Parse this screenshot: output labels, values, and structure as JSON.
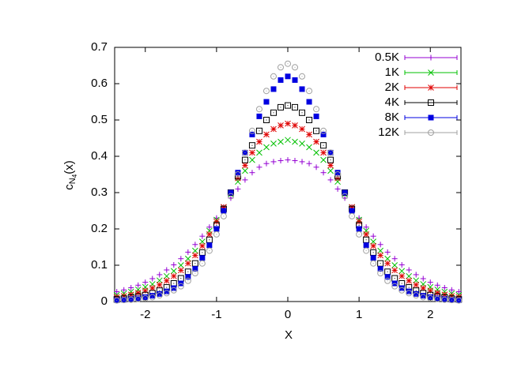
{
  "chart_data": {
    "type": "scatter",
    "xlabel": "X",
    "ylabel_parts": [
      "c",
      "N",
      "4",
      "(x)"
    ],
    "x": [
      -2.4,
      -2.3,
      -2.2,
      -2.1,
      -2.0,
      -1.9,
      -1.8,
      -1.7,
      -1.6,
      -1.5,
      -1.4,
      -1.3,
      -1.2,
      -1.1,
      -1.0,
      -0.9,
      -0.8,
      -0.7,
      -0.6,
      -0.5,
      -0.4,
      -0.3,
      -0.2,
      -0.1,
      0,
      0.1,
      0.2,
      0.3,
      0.4,
      0.5,
      0.6,
      0.7,
      0.8,
      0.9,
      1.0,
      1.1,
      1.2,
      1.3,
      1.4,
      1.5,
      1.6,
      1.7,
      1.8,
      1.9,
      2.0,
      2.1,
      2.2,
      2.3,
      2.4
    ],
    "xlim": [
      -2.43,
      2.43
    ],
    "xticks": [
      -2,
      -1,
      0,
      1,
      2
    ],
    "ylim": [
      0,
      0.7
    ],
    "yticks": [
      0,
      0.1,
      0.2,
      0.3,
      0.4,
      0.5,
      0.6,
      0.7
    ],
    "legend": "top-right",
    "series": [
      {
        "name": "0.5K",
        "color": "#9400d3",
        "marker": "plus",
        "values": [
          0.027,
          0.032,
          0.038,
          0.045,
          0.053,
          0.063,
          0.074,
          0.087,
          0.101,
          0.118,
          0.136,
          0.157,
          0.18,
          0.205,
          0.23,
          0.26,
          0.285,
          0.31,
          0.335,
          0.355,
          0.37,
          0.38,
          0.385,
          0.388,
          0.39,
          0.388,
          0.385,
          0.38,
          0.37,
          0.355,
          0.335,
          0.31,
          0.285,
          0.26,
          0.23,
          0.205,
          0.18,
          0.157,
          0.136,
          0.118,
          0.101,
          0.087,
          0.074,
          0.063,
          0.053,
          0.045,
          0.038,
          0.032,
          0.027
        ]
      },
      {
        "name": "1K",
        "color": "#00c000",
        "marker": "cross",
        "values": [
          0.018,
          0.022,
          0.027,
          0.033,
          0.04,
          0.048,
          0.058,
          0.07,
          0.084,
          0.1,
          0.118,
          0.14,
          0.165,
          0.195,
          0.225,
          0.26,
          0.295,
          0.33,
          0.36,
          0.39,
          0.41,
          0.425,
          0.435,
          0.44,
          0.445,
          0.44,
          0.435,
          0.425,
          0.41,
          0.39,
          0.36,
          0.33,
          0.295,
          0.26,
          0.225,
          0.195,
          0.165,
          0.14,
          0.118,
          0.1,
          0.084,
          0.07,
          0.058,
          0.048,
          0.04,
          0.033,
          0.027,
          0.022,
          0.018
        ]
      },
      {
        "name": "2K",
        "color": "#e00000",
        "marker": "star",
        "values": [
          0.012,
          0.015,
          0.019,
          0.024,
          0.03,
          0.037,
          0.046,
          0.057,
          0.07,
          0.086,
          0.105,
          0.127,
          0.153,
          0.185,
          0.22,
          0.26,
          0.3,
          0.34,
          0.375,
          0.41,
          0.44,
          0.46,
          0.475,
          0.485,
          0.49,
          0.485,
          0.475,
          0.46,
          0.44,
          0.41,
          0.375,
          0.34,
          0.3,
          0.26,
          0.22,
          0.185,
          0.153,
          0.127,
          0.105,
          0.086,
          0.07,
          0.057,
          0.046,
          0.037,
          0.03,
          0.024,
          0.019,
          0.015,
          0.012
        ]
      },
      {
        "name": "4K",
        "color": "#000000",
        "marker": "box",
        "values": [
          0.006,
          0.008,
          0.011,
          0.014,
          0.018,
          0.023,
          0.03,
          0.039,
          0.05,
          0.064,
          0.082,
          0.105,
          0.135,
          0.17,
          0.21,
          0.255,
          0.3,
          0.345,
          0.39,
          0.43,
          0.47,
          0.5,
          0.52,
          0.535,
          0.54,
          0.535,
          0.52,
          0.5,
          0.47,
          0.43,
          0.39,
          0.345,
          0.3,
          0.255,
          0.21,
          0.17,
          0.135,
          0.105,
          0.082,
          0.064,
          0.05,
          0.039,
          0.03,
          0.023,
          0.018,
          0.014,
          0.011,
          0.008,
          0.006
        ]
      },
      {
        "name": "8K",
        "color": "#0000e0",
        "marker": "filled-box",
        "values": [
          0.004,
          0.005,
          0.007,
          0.009,
          0.012,
          0.016,
          0.021,
          0.028,
          0.037,
          0.05,
          0.068,
          0.09,
          0.12,
          0.155,
          0.2,
          0.25,
          0.3,
          0.355,
          0.41,
          0.46,
          0.51,
          0.55,
          0.585,
          0.61,
          0.62,
          0.61,
          0.585,
          0.55,
          0.51,
          0.46,
          0.41,
          0.355,
          0.3,
          0.25,
          0.2,
          0.155,
          0.12,
          0.09,
          0.068,
          0.05,
          0.037,
          0.028,
          0.021,
          0.016,
          0.012,
          0.009,
          0.007,
          0.005,
          0.004
        ]
      },
      {
        "name": "12K",
        "color": "#a0a0a0",
        "marker": "circle",
        "values": [
          0.003,
          0.004,
          0.005,
          0.007,
          0.009,
          0.012,
          0.017,
          0.023,
          0.031,
          0.042,
          0.057,
          0.078,
          0.105,
          0.14,
          0.185,
          0.235,
          0.29,
          0.35,
          0.41,
          0.47,
          0.53,
          0.58,
          0.62,
          0.645,
          0.655,
          0.645,
          0.62,
          0.58,
          0.53,
          0.47,
          0.41,
          0.35,
          0.29,
          0.235,
          0.185,
          0.14,
          0.105,
          0.078,
          0.057,
          0.042,
          0.031,
          0.023,
          0.017,
          0.012,
          0.009,
          0.007,
          0.005,
          0.004,
          0.003
        ]
      }
    ]
  }
}
